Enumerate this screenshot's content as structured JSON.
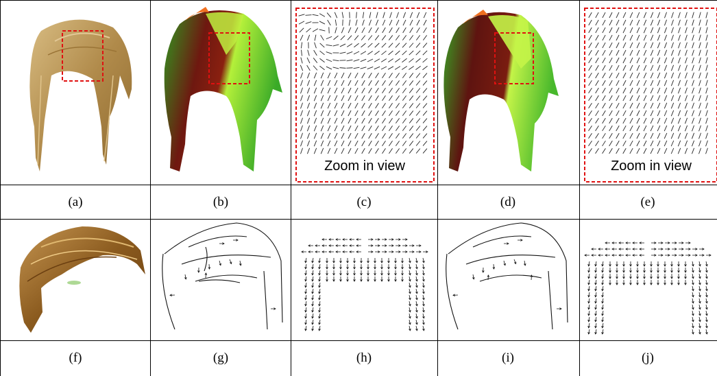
{
  "figure": {
    "top_captions": [
      "(a)",
      "(b)",
      "(c)",
      "(d)",
      "(e)"
    ],
    "bottom_captions": [
      "(f)",
      "(g)",
      "(h)",
      "(i)",
      "(j)"
    ],
    "zoom_label_c": "Zoom in view",
    "zoom_label_e": "Zoom in view"
  },
  "colors": {
    "hair_blonde": "#b08a4a",
    "hair_blonde_light": "#d4b57a",
    "hair_brown": "#8a5a1e",
    "field_red": "#7a1a10",
    "field_green": "#3fae2a",
    "field_lightgreen": "#b8f040",
    "highlight_box": "#e01010"
  }
}
